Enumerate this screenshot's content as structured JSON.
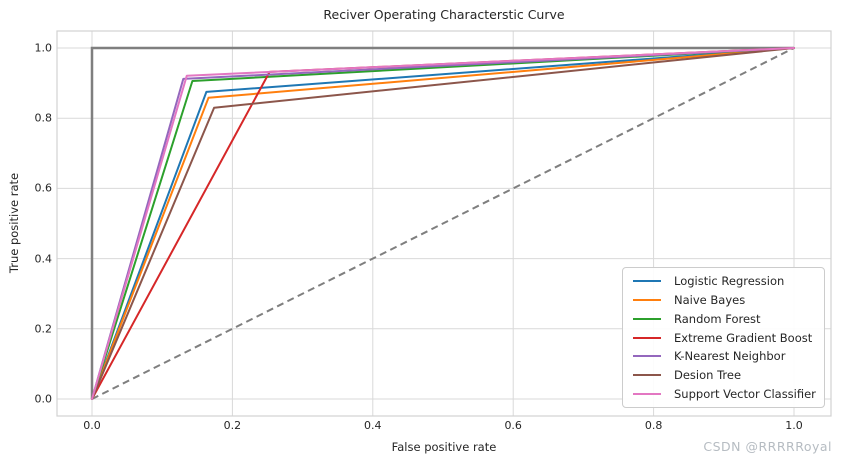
{
  "watermark": {
    "text": "CSDN @RRRRRoyal"
  },
  "chart_data": {
    "type": "line",
    "title": "Reciver Operating Characterstic Curve",
    "xlabel": "False positive rate",
    "ylabel": "True positive rate",
    "xlim": [
      -0.05,
      1.05
    ],
    "ylim": [
      -0.05,
      1.05
    ],
    "xticks": [
      0.0,
      0.2,
      0.4,
      0.6,
      0.8,
      1.0
    ],
    "yticks": [
      0.0,
      0.2,
      0.4,
      0.6,
      0.8,
      1.0
    ],
    "grid": true,
    "legend_position": "lower right",
    "series": [
      {
        "name": "Logistic Regression",
        "color": "#1f77b4",
        "points": [
          [
            0,
            0
          ],
          [
            0.163,
            0.875
          ],
          [
            1,
            1
          ]
        ]
      },
      {
        "name": "Naive Bayes",
        "color": "#ff7f0e",
        "points": [
          [
            0,
            0
          ],
          [
            0.166,
            0.858
          ],
          [
            1,
            1
          ]
        ]
      },
      {
        "name": "Random Forest",
        "color": "#2ca02c",
        "points": [
          [
            0,
            0
          ],
          [
            0.143,
            0.906
          ],
          [
            1,
            1
          ]
        ]
      },
      {
        "name": "Extreme Gradient Boost",
        "color": "#d62728",
        "points": [
          [
            0,
            0
          ],
          [
            0.253,
            0.932
          ],
          [
            1,
            1
          ]
        ]
      },
      {
        "name": "K-Nearest Neighbor",
        "color": "#9467bd",
        "points": [
          [
            0,
            0
          ],
          [
            0.13,
            0.912
          ],
          [
            1,
            1
          ]
        ]
      },
      {
        "name": "Desion Tree",
        "color": "#8c564b",
        "points": [
          [
            0,
            0
          ],
          [
            0.174,
            0.83
          ],
          [
            1,
            1
          ]
        ]
      },
      {
        "name": "Support Vector Classifier",
        "color": "#e377c2",
        "points": [
          [
            0,
            0
          ],
          [
            0.135,
            0.921
          ],
          [
            1,
            1
          ]
        ]
      }
    ],
    "reference_lines": [
      {
        "name": "perfect-classifier",
        "color": "#7f7f7f",
        "style": "solid",
        "width": 2.5,
        "points": [
          [
            0,
            0
          ],
          [
            0,
            1
          ],
          [
            1,
            1
          ]
        ]
      },
      {
        "name": "chance-diagonal",
        "color": "#7f7f7f",
        "style": "dashed",
        "width": 2,
        "points": [
          [
            0,
            0
          ],
          [
            1,
            1
          ]
        ]
      }
    ]
  }
}
